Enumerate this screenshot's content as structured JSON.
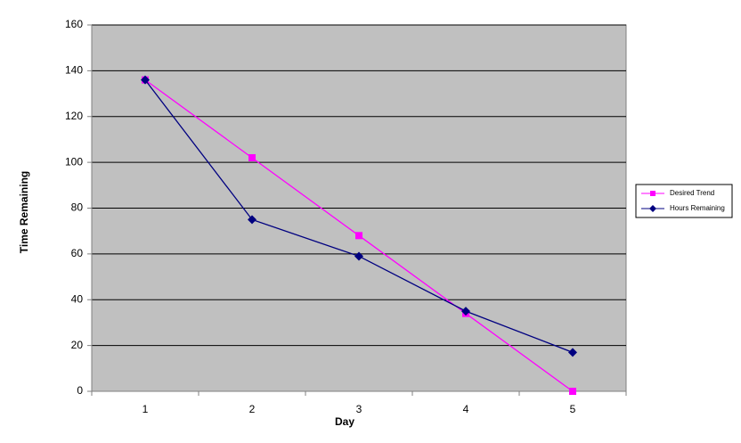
{
  "chart_data": {
    "type": "line",
    "x_label": "Day",
    "y_label": "Time Remaining",
    "categories": [
      "1",
      "2",
      "3",
      "4",
      "5"
    ],
    "series": [
      {
        "name": "Desired Trend",
        "color": "#ff00ff",
        "marker": "square",
        "values": [
          136,
          102,
          68,
          34,
          0
        ]
      },
      {
        "name": "Hours Remaining",
        "color": "#000080",
        "marker": "diamond",
        "values": [
          136,
          75,
          59,
          35,
          17
        ]
      }
    ],
    "ylim": [
      0,
      160
    ],
    "yticks": [
      0,
      20,
      40,
      60,
      80,
      100,
      120,
      140,
      160
    ],
    "grid": true,
    "legend": "right",
    "plot_background": "#c0c0c0"
  }
}
